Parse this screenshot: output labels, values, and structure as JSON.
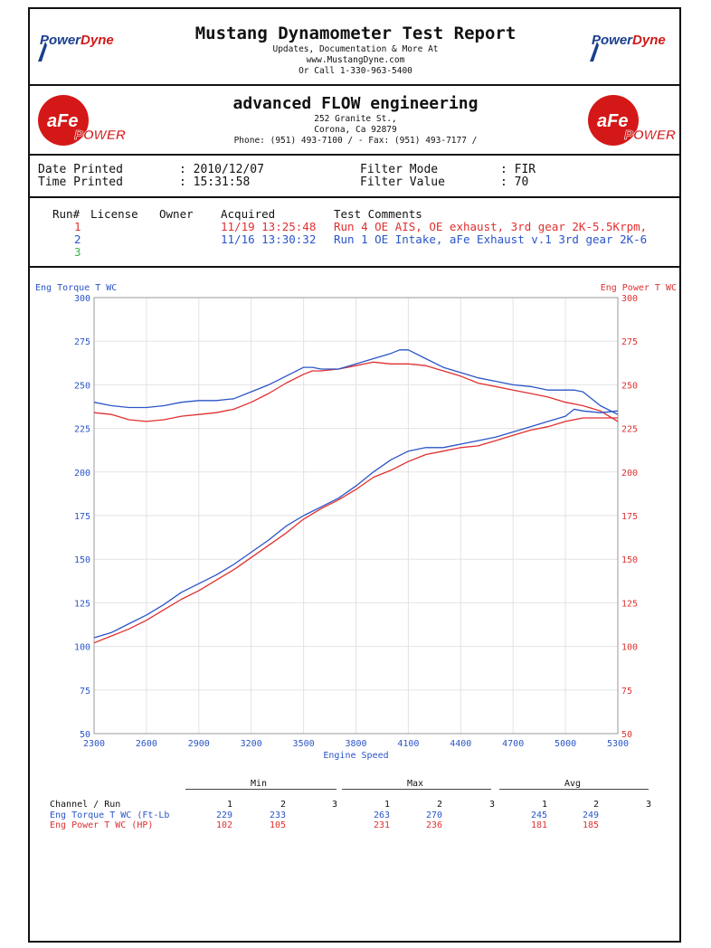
{
  "report": {
    "title": "Mustang Dynamometer Test Report",
    "subtitle_line1": "Updates, Documentation & More At",
    "subtitle_line2": "www.MustangDyne.com",
    "subtitle_line3": "Or Call 1-330-963-5400",
    "logo_left_text_a": "Power",
    "logo_left_text_b": "Dyne",
    "logo_right_text_a": "Power",
    "logo_right_text_b": "Dyne"
  },
  "company": {
    "name": "advanced FLOW engineering",
    "address1": "252 Granite St.,",
    "address2": "Corona, Ca  92879",
    "phone_fax": "Phone: (951) 493-7100 /  - Fax: (951) 493-7177 /",
    "logo_text_a": "aFe",
    "logo_text_b": "POWER"
  },
  "info": {
    "date_label": "Date Printed",
    "date_value": ": 2010/12/07",
    "time_label": "Time Printed",
    "time_value": ": 15:31:58",
    "filter_mode_label": "Filter Mode",
    "filter_mode_value": ":  FIR",
    "filter_value_label": "Filter Value",
    "filter_value_value": ":  70"
  },
  "runs": {
    "headers": [
      "Run#",
      "License",
      "Owner",
      "Acquired",
      "Test Comments"
    ],
    "rows": [
      {
        "num": "1",
        "acquired": "11/19 13:25:48",
        "comment": "Run 4 OE AIS, OE exhaust, 3rd gear 2K-5.5Krpm,",
        "color": "#e03030"
      },
      {
        "num": "2",
        "acquired": "11/16 13:30:32",
        "comment": "Run 1 OE Intake, aFe Exhaust v.1 3rd gear 2K-6",
        "color": "#2a55c8"
      },
      {
        "num": "3",
        "acquired": "",
        "comment": "",
        "color": "#38b848"
      }
    ]
  },
  "chart_data": {
    "type": "line",
    "xlabel": "Engine Speed",
    "ylabel_left": "Eng Torque T WC",
    "ylabel_right": "Eng Power T WC",
    "xlim": [
      2300,
      5300
    ],
    "ylim": [
      50,
      300
    ],
    "x_ticks": [
      "2300",
      "2600",
      "2900",
      "3200",
      "3500",
      "3800",
      "4100",
      "4400",
      "4700",
      "5000",
      "5300"
    ],
    "y_ticks": [
      "300",
      "275",
      "250",
      "225",
      "200",
      "175",
      "150",
      "125",
      "100",
      "75",
      "50"
    ],
    "grid": true,
    "colors": {
      "run1": "#e03030",
      "run2": "#2a55c8",
      "axis_left": "#2a55c8",
      "axis_right": "#e03030"
    },
    "series": [
      {
        "name": "Eng Torque T WC",
        "run": "1",
        "color": "#e03030",
        "x": [
          2300,
          2400,
          2500,
          2600,
          2700,
          2800,
          2900,
          3000,
          3100,
          3200,
          3300,
          3400,
          3500,
          3550,
          3600,
          3700,
          3800,
          3900,
          4000,
          4100,
          4200,
          4300,
          4400,
          4500,
          4600,
          4700,
          4800,
          4900,
          5000,
          5100,
          5200,
          5300
        ],
        "y": [
          234,
          233,
          230,
          229,
          230,
          232,
          233,
          234,
          236,
          240,
          245,
          251,
          256,
          258,
          258,
          259,
          261,
          263,
          262,
          262,
          261,
          258,
          255,
          251,
          249,
          247,
          245,
          243,
          240,
          238,
          235,
          229
        ]
      },
      {
        "name": "Eng Torque T WC",
        "run": "2",
        "color": "#2a55c8",
        "x": [
          2300,
          2400,
          2500,
          2600,
          2700,
          2800,
          2900,
          3000,
          3100,
          3200,
          3300,
          3400,
          3500,
          3550,
          3600,
          3700,
          3800,
          3900,
          4000,
          4050,
          4100,
          4200,
          4300,
          4400,
          4500,
          4600,
          4700,
          4800,
          4900,
          5000,
          5050,
          5100,
          5200,
          5300
        ],
        "y": [
          240,
          238,
          237,
          237,
          238,
          240,
          241,
          241,
          242,
          246,
          250,
          255,
          260,
          260,
          259,
          259,
          262,
          265,
          268,
          270,
          270,
          265,
          260,
          257,
          254,
          252,
          250,
          249,
          247,
          247,
          247,
          246,
          238,
          233
        ]
      },
      {
        "name": "Eng Power T WC",
        "run": "1",
        "color": "#e03030",
        "x": [
          2300,
          2400,
          2500,
          2600,
          2700,
          2800,
          2900,
          3000,
          3100,
          3200,
          3300,
          3400,
          3500,
          3600,
          3700,
          3800,
          3900,
          4000,
          4100,
          4200,
          4300,
          4400,
          4500,
          4600,
          4700,
          4800,
          4900,
          5000,
          5100,
          5200,
          5300
        ],
        "y": [
          102,
          106,
          110,
          115,
          121,
          127,
          132,
          138,
          144,
          151,
          158,
          165,
          173,
          179,
          184,
          190,
          197,
          201,
          206,
          210,
          212,
          214,
          215,
          218,
          221,
          224,
          226,
          229,
          231,
          231,
          231
        ]
      },
      {
        "name": "Eng Power T WC",
        "run": "2",
        "color": "#2a55c8",
        "x": [
          2300,
          2400,
          2500,
          2600,
          2700,
          2800,
          2900,
          3000,
          3100,
          3200,
          3300,
          3400,
          3500,
          3600,
          3700,
          3800,
          3900,
          4000,
          4100,
          4200,
          4300,
          4400,
          4500,
          4600,
          4700,
          4800,
          4900,
          5000,
          5050,
          5100,
          5200,
          5300
        ],
        "y": [
          105,
          108,
          113,
          118,
          124,
          131,
          136,
          141,
          147,
          154,
          161,
          169,
          175,
          180,
          185,
          192,
          200,
          207,
          212,
          214,
          214,
          216,
          218,
          220,
          223,
          226,
          229,
          232,
          236,
          235,
          234,
          235
        ]
      }
    ]
  },
  "summary": {
    "groups": [
      "Min",
      "Max",
      "Avg"
    ],
    "channel_header": "Channel / Run",
    "col_headers": [
      "1",
      "2",
      "3"
    ],
    "rows": [
      {
        "label": "Eng Torque T WC (Ft-Lb",
        "color": "#2a55c8",
        "min": [
          "229",
          "233"
        ],
        "max": [
          "263",
          "270"
        ],
        "avg": [
          "245",
          "249"
        ]
      },
      {
        "label": "Eng Power T WC (HP)",
        "color": "#e03030",
        "min": [
          "102",
          "105"
        ],
        "max": [
          "231",
          "236"
        ],
        "avg": [
          "181",
          "185"
        ]
      }
    ]
  }
}
